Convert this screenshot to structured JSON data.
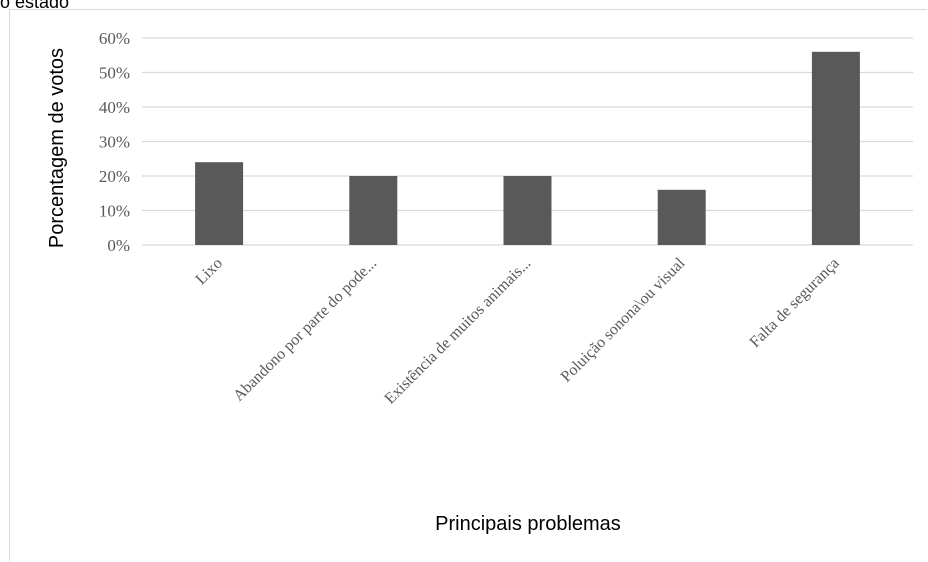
{
  "caption": "o estado",
  "colors": {
    "bar": "#595959",
    "grid": "#d9d9d9"
  },
  "chart_data": {
    "type": "bar",
    "title": "",
    "xlabel": "Principais problemas",
    "ylabel": "Porcentagem de votos",
    "categories": [
      "Lixo",
      "Abandono por parte do pode...",
      "Existência de muitos animais...",
      "Poluição sonona\\ou visual",
      "Falta de segurança"
    ],
    "values": [
      24,
      20,
      20,
      16,
      56
    ],
    "ylim": [
      0,
      60
    ],
    "yticks": [
      "0%",
      "10%",
      "20%",
      "30%",
      "40%",
      "50%",
      "60%"
    ],
    "grid": true,
    "legend": "none"
  }
}
